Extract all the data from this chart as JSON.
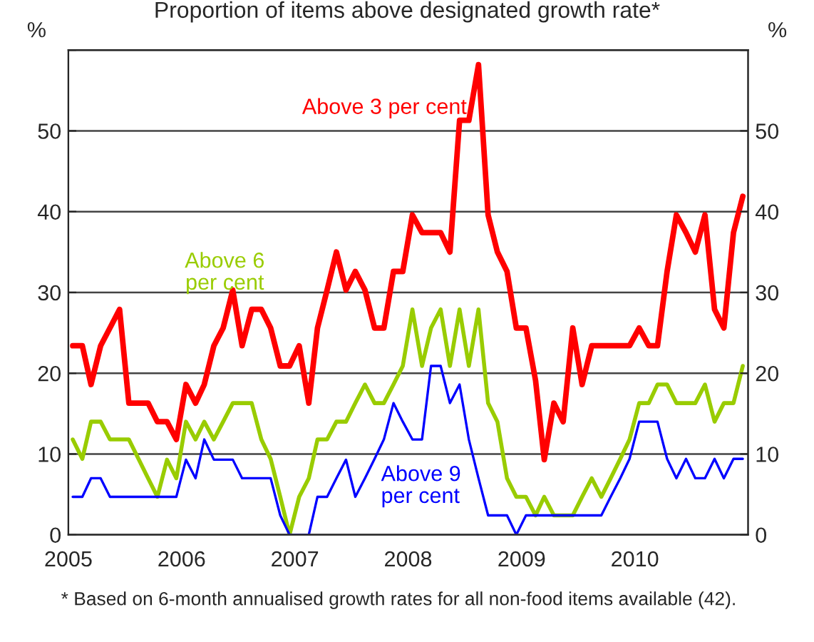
{
  "chart_data": {
    "type": "line",
    "title": "Proportion of items above designated growth rate*",
    "ylabel": "%",
    "y2label": "%",
    "x": [
      "2005-01-15",
      "2005-02-15",
      "2005-03-15",
      "2005-04-15",
      "2005-05-15",
      "2005-06-15",
      "2005-07-15",
      "2005-08-15",
      "2005-09-15",
      "2005-10-15",
      "2005-11-15",
      "2005-12-15",
      "2006-01-15",
      "2006-02-15",
      "2006-03-15",
      "2006-04-15",
      "2006-05-15",
      "2006-06-15",
      "2006-07-15",
      "2006-08-15",
      "2006-09-15",
      "2006-10-15",
      "2006-11-15",
      "2006-12-15",
      "2007-01-15",
      "2007-02-15",
      "2007-03-15",
      "2007-04-15",
      "2007-05-15",
      "2007-06-15",
      "2007-07-15",
      "2007-08-15",
      "2007-09-15",
      "2007-10-15",
      "2007-11-15",
      "2007-12-15",
      "2008-01-15",
      "2008-02-15",
      "2008-03-15",
      "2008-04-15",
      "2008-05-15",
      "2008-06-15",
      "2008-07-15",
      "2008-08-15",
      "2008-09-15",
      "2008-10-15",
      "2008-11-15",
      "2008-12-15",
      "2009-01-15",
      "2009-02-15",
      "2009-03-15",
      "2009-04-15",
      "2009-05-15",
      "2009-06-15",
      "2009-07-15",
      "2009-08-15",
      "2009-09-15",
      "2009-10-15",
      "2009-11-15",
      "2009-12-15",
      "2010-01-15",
      "2010-02-15",
      "2010-03-15",
      "2010-04-15",
      "2010-05-15",
      "2010-06-15",
      "2010-07-15",
      "2010-08-15",
      "2010-09-15",
      "2010-10-15",
      "2010-11-15",
      "2010-12-15"
    ],
    "series": [
      {
        "name": "Above 3 per cent",
        "color": "#ff0000",
        "values": [
          23.4,
          23.4,
          18.6,
          23.4,
          25.6,
          27.9,
          16.3,
          16.3,
          16.3,
          14,
          14,
          11.8,
          18.6,
          16.3,
          18.6,
          23.4,
          25.6,
          30.3,
          23.4,
          27.9,
          27.9,
          25.6,
          20.9,
          20.9,
          23.4,
          16.3,
          25.6,
          30.3,
          35,
          30.3,
          32.6,
          30.3,
          25.6,
          25.6,
          32.6,
          32.6,
          39.6,
          37.4,
          37.4,
          37.4,
          35,
          51.3,
          51.3,
          58.2,
          39.6,
          35,
          32.6,
          25.6,
          25.6,
          19.1,
          9.3,
          16.3,
          14,
          25.6,
          18.6,
          23.4,
          23.4,
          23.4,
          23.4,
          23.4,
          25.6,
          23.4,
          23.4,
          32.6,
          39.6,
          37.4,
          35,
          39.6,
          27.9,
          25.6,
          37.4,
          41.9
        ]
      },
      {
        "name": "Above 6\nper cent",
        "color": "#99cc00",
        "values": [
          11.8,
          9.4,
          14,
          14,
          11.8,
          11.8,
          11.8,
          9.4,
          7,
          4.7,
          9.3,
          7,
          14,
          11.8,
          14,
          11.8,
          14,
          16.3,
          16.3,
          16.3,
          11.8,
          9.4,
          4.7,
          0,
          4.7,
          7,
          11.8,
          11.8,
          14,
          14,
          16.3,
          18.6,
          16.3,
          16.3,
          18.6,
          20.9,
          27.9,
          20.9,
          25.6,
          27.9,
          20.9,
          27.9,
          20.9,
          27.9,
          16.3,
          14,
          7,
          4.7,
          4.7,
          2.4,
          4.7,
          2.4,
          2.4,
          2.4,
          4.7,
          7,
          4.7,
          7,
          9.4,
          11.8,
          16.3,
          16.3,
          18.6,
          18.6,
          16.3,
          16.3,
          16.3,
          18.6,
          14,
          16.3,
          16.3,
          20.9
        ]
      },
      {
        "name": "Above 9\nper cent",
        "color": "#0000ff",
        "values": [
          4.7,
          4.7,
          7,
          7,
          4.7,
          4.7,
          4.7,
          4.7,
          4.7,
          4.7,
          4.7,
          4.7,
          9.3,
          7,
          11.8,
          9.3,
          9.3,
          9.3,
          7,
          7,
          7,
          7,
          2.4,
          0,
          0,
          0,
          4.7,
          4.7,
          7,
          9.3,
          4.7,
          7,
          9.4,
          11.8,
          16.3,
          14,
          11.8,
          11.8,
          20.9,
          20.9,
          16.3,
          18.6,
          11.8,
          7,
          2.4,
          2.4,
          2.4,
          0,
          2.4,
          2.4,
          2.4,
          2.4,
          2.4,
          2.4,
          2.4,
          2.4,
          2.4,
          4.7,
          7,
          9.4,
          14,
          14,
          14,
          9.4,
          7,
          9.4,
          7,
          7,
          9.4,
          7,
          9.4,
          9.4
        ]
      }
    ],
    "xlim": [
      "2005-01-01",
      "2011-01-01"
    ],
    "xticks": [
      {
        "value": "2005-01-01",
        "label": "2005"
      },
      {
        "value": "2006-01-01",
        "label": "2006"
      },
      {
        "value": "2007-01-01",
        "label": "2007"
      },
      {
        "value": "2008-01-01",
        "label": "2008"
      },
      {
        "value": "2009-01-01",
        "label": "2009"
      },
      {
        "value": "2010-01-01",
        "label": "2010"
      },
      {
        "value": "2011-01-01",
        "label": null
      }
    ],
    "ylim": [
      0,
      60
    ],
    "yticks": [
      0,
      10,
      20,
      30,
      40,
      50,
      {
        "value": 60,
        "label": null
      }
    ],
    "y2lim": [
      0,
      60
    ],
    "y2ticks": [
      0,
      10,
      20,
      30,
      40,
      50,
      {
        "value": 60,
        "label": null
      }
    ],
    "grid": "y",
    "legend": false,
    "annotations": [
      "* Based on 6-month annualised growth rates for all non-food items available (42)."
    ]
  }
}
